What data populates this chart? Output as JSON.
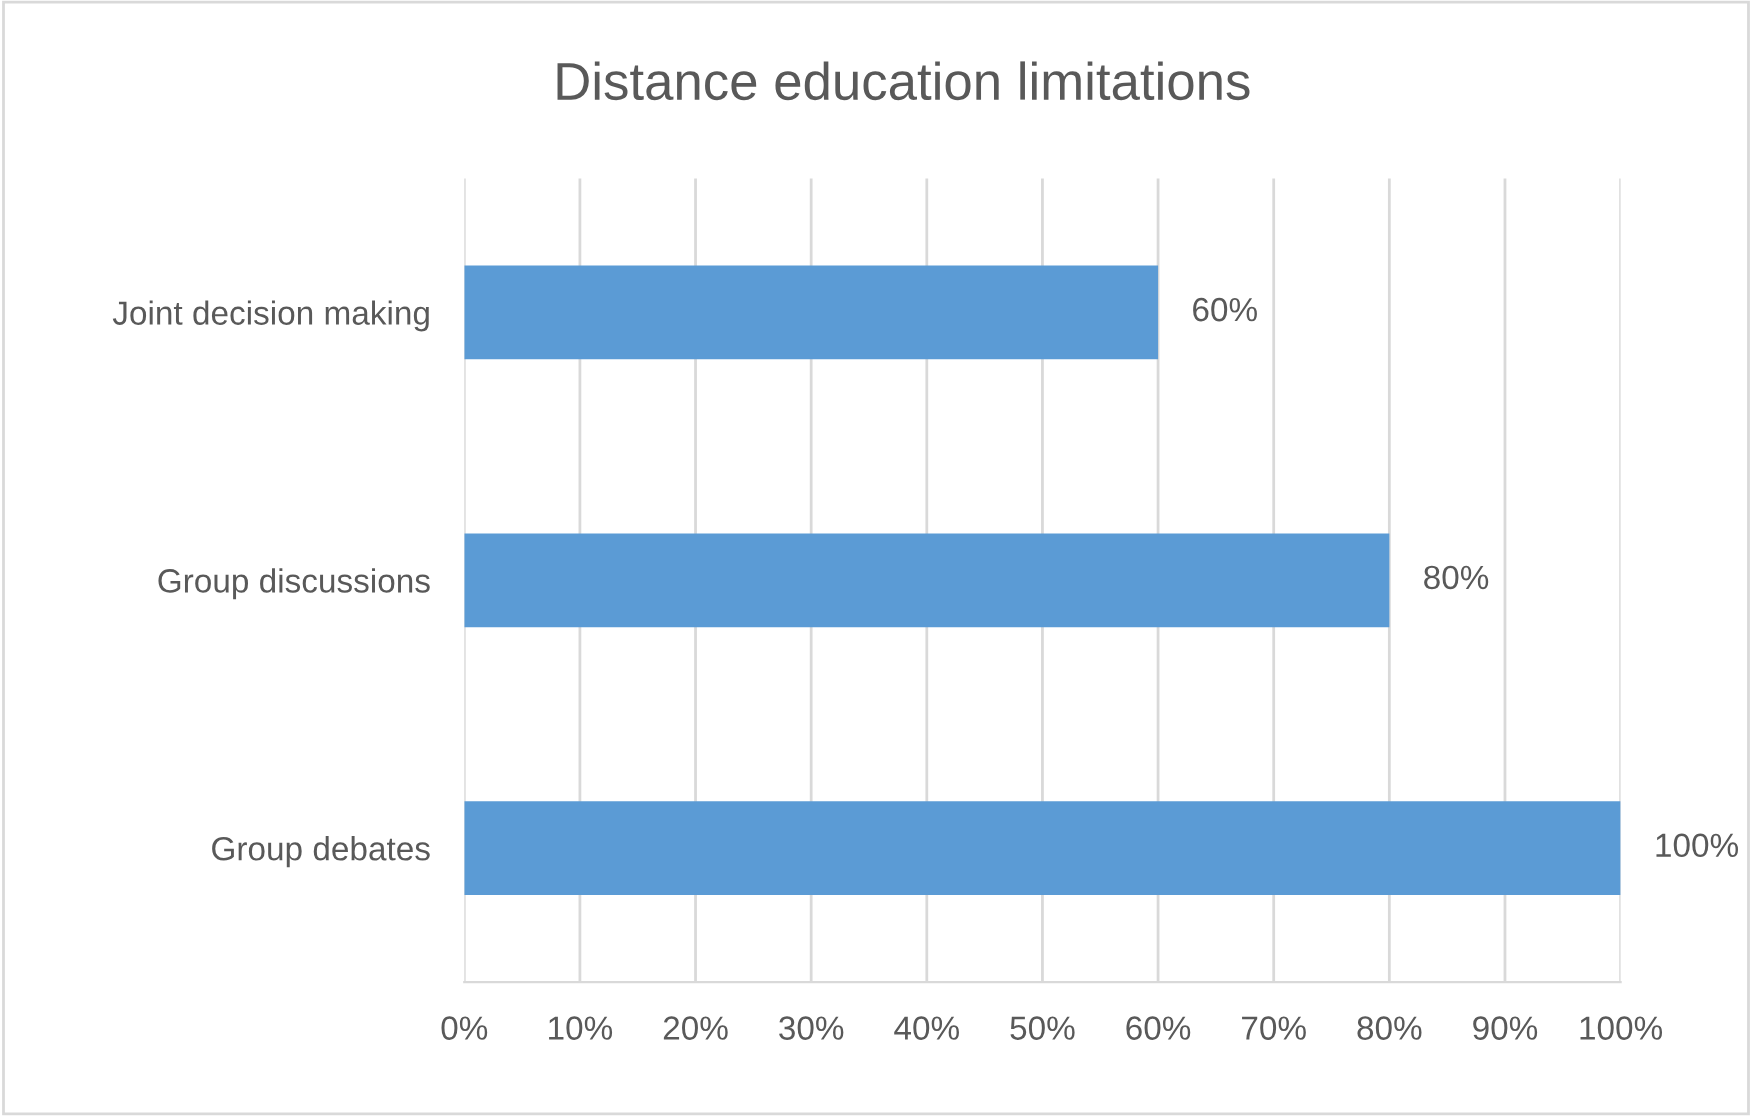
{
  "chart_data": {
    "type": "bar",
    "orientation": "horizontal",
    "title": "Distance education limitations",
    "categories": [
      "Joint decision making",
      "Group discussions",
      "Group debates"
    ],
    "values": [
      60,
      80,
      100
    ],
    "value_labels": [
      "60%",
      "80%",
      "100%"
    ],
    "color": "#5b9bd5",
    "xlim": [
      0,
      100
    ],
    "xticks": [
      {
        "value": 0,
        "label": "0%"
      },
      {
        "value": 10,
        "label": "10%"
      },
      {
        "value": 20,
        "label": "20%"
      },
      {
        "value": 30,
        "label": "30%"
      },
      {
        "value": 40,
        "label": "40%"
      },
      {
        "value": 50,
        "label": "50%"
      },
      {
        "value": 60,
        "label": "60%"
      },
      {
        "value": 70,
        "label": "70%"
      },
      {
        "value": 80,
        "label": "80%"
      },
      {
        "value": 90,
        "label": "90%"
      },
      {
        "value": 100,
        "label": "100%"
      }
    ],
    "grid": "x",
    "legend": false
  }
}
